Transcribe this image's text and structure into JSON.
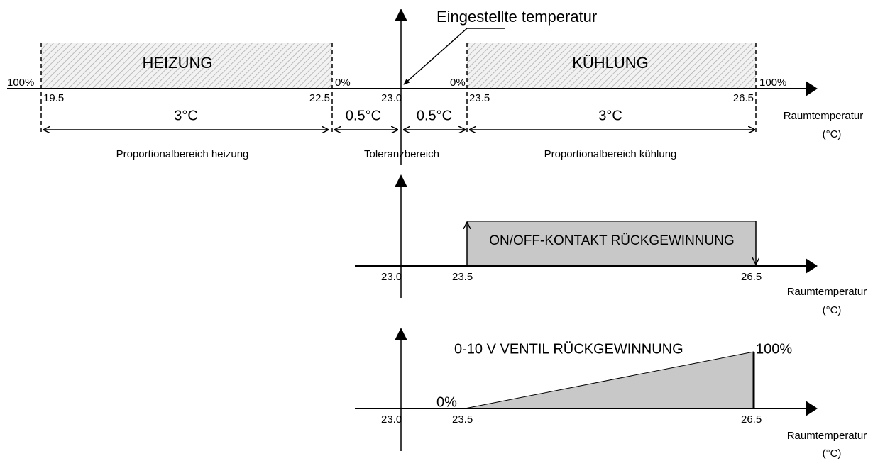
{
  "top": {
    "setpoint_label": "Eingestellte temperatur",
    "zones": {
      "heating": "HEIZUNG",
      "cooling": "KÜHLUNG"
    },
    "percent_labels": [
      "100%",
      "0%",
      "0%",
      "100%"
    ],
    "ticks": [
      "19.5",
      "22.5",
      "23.0",
      "23.5",
      "26.5"
    ],
    "spans": [
      "3°C",
      "0.5°C",
      "0.5°C",
      "3°C"
    ],
    "ranges": [
      "Proportionalbereich heizung",
      "Toleranzbereich",
      "Proportionalbereich kühlung"
    ],
    "axis_label": "Raumtemperatur",
    "axis_unit": "(°C)"
  },
  "middle": {
    "label": "ON/OFF-KONTAKT RÜCKGEWINNUNG",
    "ticks": [
      "23.0",
      "23.5",
      "26.5"
    ],
    "axis_label": "Raumtemperatur",
    "axis_unit": "(°C)"
  },
  "bottom": {
    "label": "0-10 V VENTIL RÜCKGEWINNUNG",
    "start": "0%",
    "end": "100%",
    "ticks": [
      "23.0",
      "23.5",
      "26.5"
    ],
    "axis_label": "Raumtemperatur",
    "axis_unit": "(°C)"
  }
}
